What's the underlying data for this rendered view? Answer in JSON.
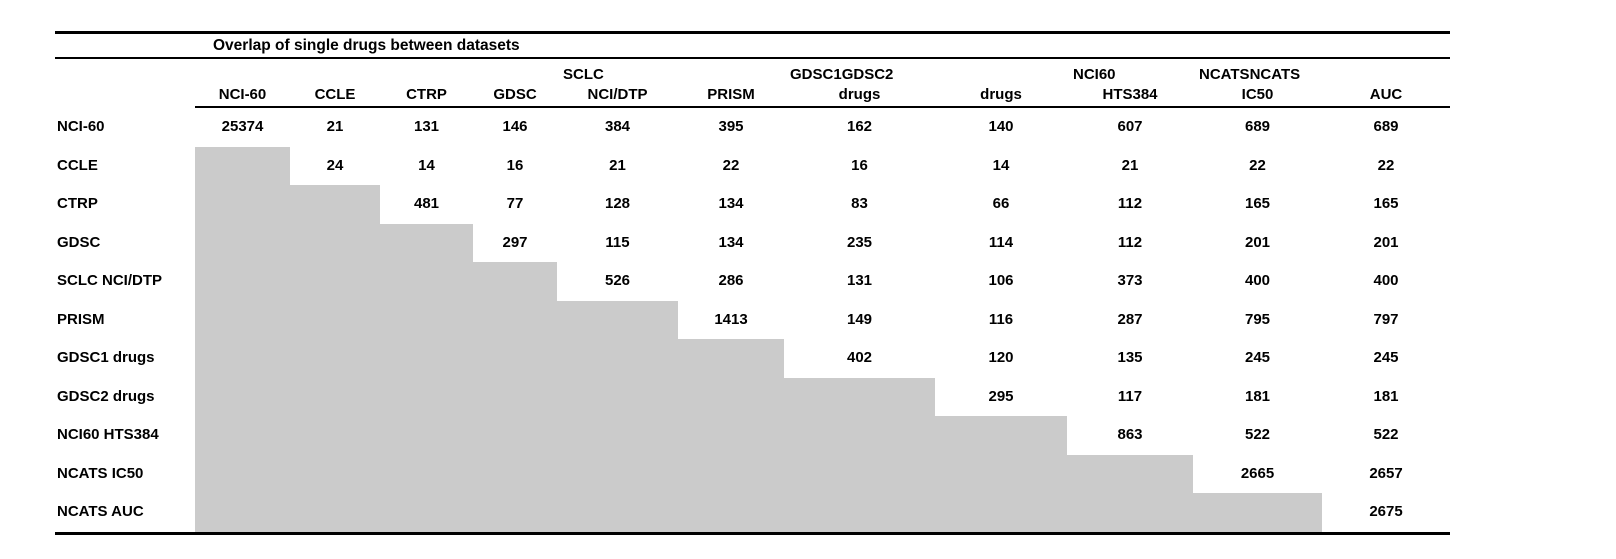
{
  "title": "Overlap of single drugs between datasets",
  "colors": {
    "mask_gray": "#cbcbcb",
    "rule_black": "#000000"
  },
  "table": {
    "header_top": [
      {
        "texts": [
          ""
        ],
        "underline": false
      },
      {
        "texts": [
          ""
        ],
        "underline": false
      },
      {
        "texts": [
          ""
        ],
        "underline": false
      },
      {
        "texts": [
          ""
        ],
        "underline": false
      },
      {
        "texts": [
          "SCLC"
        ],
        "underline": true
      },
      {
        "texts": [
          ""
        ],
        "underline": false
      },
      {
        "texts": [
          "GDSC1",
          "GDSC2"
        ],
        "underline": true
      },
      {
        "texts": [
          "NCI60"
        ],
        "underline": false
      },
      {
        "texts": [
          "NCATS",
          "NCATS"
        ],
        "underline": true
      }
    ],
    "header_bottom": [
      "NCI-60",
      "CCLE",
      "CTRP",
      "GDSC",
      "NCI/DTP",
      "PRISM",
      "drugs",
      "drugs",
      "HTS384",
      "IC50",
      "AUC"
    ],
    "rows": [
      {
        "label": "NCI-60",
        "values": [
          "25374",
          "21",
          "131",
          "146",
          "384",
          "395",
          "162",
          "140",
          "607",
          "689",
          "689"
        ]
      },
      {
        "label": "CCLE",
        "values": [
          "24",
          "14",
          "16",
          "21",
          "22",
          "16",
          "14",
          "21",
          "22",
          "22"
        ]
      },
      {
        "label": "CTRP",
        "values": [
          "481",
          "77",
          "128",
          "134",
          "83",
          "66",
          "112",
          "165",
          "165"
        ]
      },
      {
        "label": "GDSC",
        "values": [
          "297",
          "115",
          "134",
          "235",
          "114",
          "112",
          "201",
          "201"
        ]
      },
      {
        "label": "SCLC NCI/DTP",
        "values": [
          "526",
          "286",
          "131",
          "106",
          "373",
          "400",
          "400"
        ]
      },
      {
        "label": "PRISM",
        "values": [
          "1413",
          "149",
          "116",
          "287",
          "795",
          "797"
        ]
      },
      {
        "label": "GDSC1 drugs",
        "values": [
          "402",
          "120",
          "135",
          "245",
          "245"
        ]
      },
      {
        "label": "GDSC2 drugs",
        "values": [
          "295",
          "117",
          "181",
          "181"
        ]
      },
      {
        "label": "NCI60 HTS384",
        "values": [
          "863",
          "522",
          "522"
        ]
      },
      {
        "label": "NCATS IC50",
        "values": [
          "2665",
          "2657"
        ]
      },
      {
        "label": "NCATS AUC",
        "values": [
          "2675"
        ]
      }
    ]
  }
}
